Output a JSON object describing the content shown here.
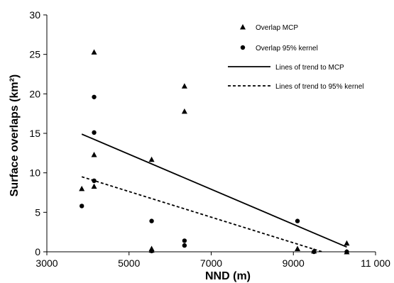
{
  "chart_data": {
    "type": "scatter",
    "xlabel": "NND (m)",
    "ylabel": "Surface overlaps (km²)",
    "xlim": [
      3000,
      11000
    ],
    "ylim": [
      0,
      30
    ],
    "x_ticks": [
      3000,
      5000,
      7000,
      9000,
      11000
    ],
    "x_tick_labels": [
      "3000",
      "5000",
      "7000",
      "9000",
      "11 000"
    ],
    "y_ticks": [
      0,
      5,
      10,
      15,
      20,
      25,
      30
    ],
    "y_tick_labels": [
      "0",
      "5",
      "10",
      "15",
      "20",
      "25",
      "30"
    ],
    "grid": false,
    "legend_position": "top-right",
    "series": [
      {
        "name": "Overlap MCP",
        "marker": "triangle",
        "color": "#000000",
        "points": [
          [
            3850,
            8.0
          ],
          [
            4150,
            25.3
          ],
          [
            4150,
            12.3
          ],
          [
            4150,
            8.3
          ],
          [
            5550,
            11.7
          ],
          [
            5550,
            0.4
          ],
          [
            5550,
            0.2
          ],
          [
            6350,
            21.0
          ],
          [
            6350,
            17.8
          ],
          [
            9100,
            0.4
          ],
          [
            9500,
            0.1
          ],
          [
            10300,
            1.1
          ],
          [
            10300,
            0.0
          ]
        ]
      },
      {
        "name": "Overlap 95% kernel",
        "marker": "circle",
        "color": "#000000",
        "points": [
          [
            3850,
            5.8
          ],
          [
            4150,
            19.6
          ],
          [
            4150,
            15.1
          ],
          [
            4150,
            9.0
          ],
          [
            5550,
            3.9
          ],
          [
            5550,
            0.1
          ],
          [
            6350,
            1.4
          ],
          [
            6350,
            0.8
          ],
          [
            9100,
            3.9
          ],
          [
            9500,
            0.0
          ],
          [
            10300,
            0.0
          ]
        ]
      }
    ],
    "trend_lines": [
      {
        "name": "Lines of trend to MCP",
        "style": "solid",
        "from": [
          3850,
          14.9
        ],
        "to": [
          10300,
          0.6
        ]
      },
      {
        "name": "Lines of trend to 95% kernel",
        "style": "dashed",
        "from": [
          3850,
          9.5
        ],
        "to": [
          9700,
          0.0
        ]
      }
    ]
  }
}
